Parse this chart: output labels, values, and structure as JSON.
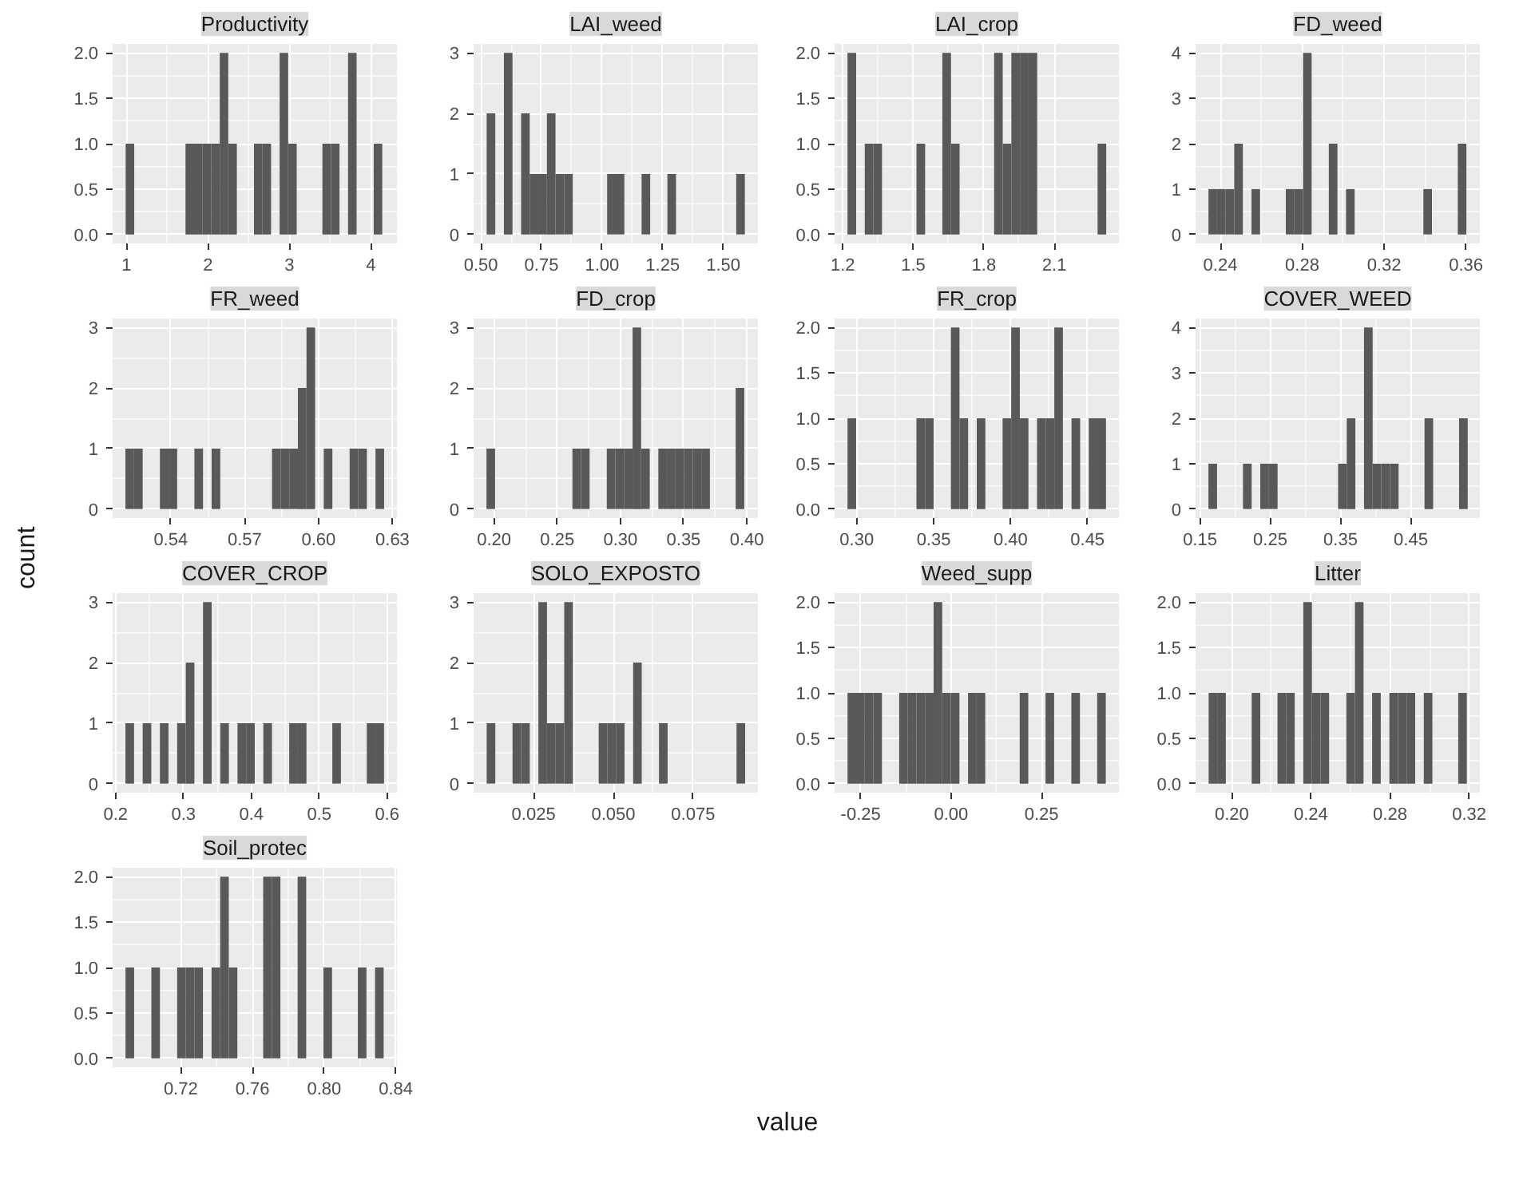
{
  "chart_data": [
    {
      "type": "other",
      "ylabel": "count",
      "xlabel": "value"
    },
    {
      "type": "histogram",
      "title": "Productivity",
      "color": "#595959",
      "grid": true,
      "xlim": [
        0.83,
        4.32
      ],
      "xticks": [
        1,
        2,
        3,
        4
      ],
      "ylim": [
        -0.1,
        2.1
      ],
      "yticks": [
        {
          "value": 0,
          "label": "0.0"
        },
        {
          "value": 0.5,
          "label": "0.5"
        },
        {
          "value": 1,
          "label": "1.0"
        },
        {
          "value": 1.5,
          "label": "1.5"
        },
        {
          "value": 2,
          "label": "2.0"
        }
      ],
      "bins": [
        0.99,
        1.095,
        1.2,
        1.305,
        1.41,
        1.515,
        1.62,
        1.725,
        1.83,
        1.935,
        2.04,
        2.145,
        2.25,
        2.355,
        2.46,
        2.565,
        2.67,
        2.775,
        2.88,
        2.985,
        3.09,
        3.195,
        3.3,
        3.405,
        3.51,
        3.615,
        3.72,
        3.825,
        3.93,
        4.035,
        4.14
      ],
      "values": [
        1,
        0,
        0,
        0,
        0,
        0,
        0,
        1,
        1,
        1,
        1,
        2,
        1,
        0,
        0,
        1,
        1,
        0,
        2,
        1,
        0,
        0,
        0,
        1,
        1,
        0,
        2,
        0,
        0,
        1
      ]
    },
    {
      "type": "histogram",
      "title": "LAI_weed",
      "color": "#595959",
      "grid": true,
      "xlim": [
        0.47,
        1.643
      ],
      "xticks": [
        {
          "value": 0.5,
          "label": "0.50"
        },
        {
          "value": 0.75,
          "label": "0.75"
        },
        {
          "value": 1,
          "label": "1.00"
        },
        {
          "value": 1.25,
          "label": "1.25"
        },
        {
          "value": 1.5,
          "label": "1.50"
        }
      ],
      "ylim": [
        -0.15,
        3.15
      ],
      "yticks": [
        0,
        1,
        2,
        3
      ],
      "bins": [
        0.524,
        0.5595,
        0.595,
        0.6305,
        0.666,
        0.7015,
        0.737,
        0.7725,
        0.808,
        0.8435,
        0.879,
        0.9145,
        0.95,
        0.9855,
        1.021,
        1.0565,
        1.092,
        1.1275,
        1.163,
        1.1985,
        1.234,
        1.2695,
        1.305,
        1.3405,
        1.376,
        1.4115,
        1.447,
        1.4825,
        1.518,
        1.5535,
        1.589
      ],
      "values": [
        2,
        0,
        3,
        0,
        2,
        1,
        1,
        2,
        1,
        1,
        0,
        0,
        0,
        0,
        1,
        1,
        0,
        0,
        1,
        0,
        0,
        1,
        0,
        0,
        0,
        0,
        0,
        0,
        0,
        1
      ]
    },
    {
      "type": "histogram",
      "title": "LAI_crop",
      "color": "#595959",
      "grid": true,
      "xlim": [
        1.165,
        2.375
      ],
      "xticks": [
        1.2,
        1.5,
        1.8,
        2.1
      ],
      "ylim": [
        -0.1,
        2.1
      ],
      "yticks": [
        {
          "value": 0,
          "label": "0.0"
        },
        {
          "value": 0.5,
          "label": "0.5"
        },
        {
          "value": 1,
          "label": "1.0"
        },
        {
          "value": 1.5,
          "label": "1.5"
        },
        {
          "value": 2,
          "label": "2.0"
        }
      ],
      "bins": [
        1.22,
        1.2567,
        1.2934,
        1.3301,
        1.3668,
        1.4035,
        1.4402,
        1.4769,
        1.5136,
        1.5503,
        1.587,
        1.6237,
        1.6604,
        1.6971,
        1.7338,
        1.7705,
        1.8072,
        1.8439,
        1.8806,
        1.9173,
        1.954,
        1.9907,
        2.0274,
        2.0641,
        2.1008,
        2.1375,
        2.1742,
        2.2109,
        2.2476,
        2.2843,
        2.321
      ],
      "values": [
        2,
        0,
        1,
        1,
        0,
        0,
        0,
        0,
        1,
        0,
        0,
        2,
        1,
        0,
        0,
        0,
        0,
        2,
        1,
        2,
        2,
        2,
        0,
        0,
        0,
        0,
        0,
        0,
        0,
        1
      ]
    },
    {
      "type": "histogram",
      "title": "FD_weed",
      "color": "#595959",
      "grid": true,
      "xlim": [
        0.2279,
        0.3668
      ],
      "xticks": [
        0.24,
        0.28,
        0.32,
        0.36
      ],
      "ylim": [
        -0.2,
        4.2
      ],
      "yticks": [
        0,
        1,
        2,
        3,
        4
      ],
      "bins": [
        0.2342,
        0.2384,
        0.2426,
        0.2468,
        0.251,
        0.2552,
        0.2594,
        0.2636,
        0.2678,
        0.272,
        0.2762,
        0.2804,
        0.2846,
        0.2888,
        0.293,
        0.2972,
        0.3014,
        0.3056,
        0.3098,
        0.314,
        0.3182,
        0.3224,
        0.3266,
        0.3308,
        0.335,
        0.3392,
        0.3434,
        0.3476,
        0.3518,
        0.356,
        0.3602
      ],
      "values": [
        1,
        1,
        1,
        2,
        0,
        1,
        0,
        0,
        0,
        1,
        1,
        4,
        0,
        0,
        2,
        0,
        1,
        0,
        0,
        0,
        0,
        0,
        0,
        0,
        0,
        1,
        0,
        0,
        0,
        2
      ]
    },
    {
      "type": "histogram",
      "title": "FR_weed",
      "color": "#595959",
      "grid": true,
      "xlim": [
        0.5164,
        0.6318
      ],
      "xticks": [
        0.54,
        0.57,
        {
          "value": 0.6,
          "label": "0.60"
        },
        0.63
      ],
      "ylim": [
        -0.15,
        3.15
      ],
      "yticks": [
        0,
        1,
        2,
        3
      ],
      "bins": [
        0.5216,
        0.5251,
        0.5286,
        0.5321,
        0.5356,
        0.5391,
        0.5426,
        0.5461,
        0.5496,
        0.5531,
        0.5566,
        0.5601,
        0.5636,
        0.5671,
        0.5706,
        0.5741,
        0.5776,
        0.5811,
        0.5846,
        0.5881,
        0.5916,
        0.5951,
        0.5986,
        0.6021,
        0.6056,
        0.6091,
        0.6126,
        0.6161,
        0.6196,
        0.6231,
        0.6266
      ],
      "values": [
        1,
        1,
        0,
        0,
        1,
        1,
        0,
        0,
        1,
        0,
        1,
        0,
        0,
        0,
        0,
        0,
        0,
        1,
        1,
        1,
        2,
        3,
        0,
        1,
        0,
        0,
        1,
        1,
        0,
        1
      ]
    },
    {
      "type": "histogram",
      "title": "FD_crop",
      "color": "#595959",
      "grid": true,
      "xlim": [
        0.1838,
        0.4088
      ],
      "xticks": [
        {
          "value": 0.2,
          "label": "0.20"
        },
        0.25,
        {
          "value": 0.3,
          "label": "0.30"
        },
        0.35,
        {
          "value": 0.4,
          "label": "0.40"
        }
      ],
      "ylim": [
        -0.15,
        3.15
      ],
      "yticks": [
        0,
        1,
        2,
        3
      ],
      "bins": [
        0.194,
        0.2008,
        0.2076,
        0.2144,
        0.2212,
        0.228,
        0.2348,
        0.2416,
        0.2484,
        0.2552,
        0.262,
        0.2688,
        0.2756,
        0.2824,
        0.2892,
        0.296,
        0.3028,
        0.3096,
        0.3164,
        0.3232,
        0.33,
        0.3368,
        0.3436,
        0.3504,
        0.3572,
        0.364,
        0.3708,
        0.3776,
        0.3844,
        0.3912,
        0.398
      ],
      "values": [
        1,
        0,
        0,
        0,
        0,
        0,
        0,
        0,
        0,
        0,
        1,
        1,
        0,
        0,
        1,
        1,
        1,
        3,
        1,
        0,
        1,
        1,
        1,
        1,
        1,
        1,
        0,
        0,
        0,
        2
      ]
    },
    {
      "type": "histogram",
      "title": "FR_crop",
      "color": "#595959",
      "grid": true,
      "xlim": [
        0.2856,
        0.4704
      ],
      "xticks": [
        {
          "value": 0.3,
          "label": "0.30"
        },
        0.35,
        {
          "value": 0.4,
          "label": "0.40"
        },
        0.45
      ],
      "ylim": [
        -0.1,
        2.1
      ],
      "yticks": [
        {
          "value": 0,
          "label": "0.0"
        },
        {
          "value": 0.5,
          "label": "0.5"
        },
        {
          "value": 1,
          "label": "1.0"
        },
        {
          "value": 1.5,
          "label": "1.5"
        },
        {
          "value": 2,
          "label": "2.0"
        }
      ],
      "bins": [
        0.294,
        0.2996,
        0.3052,
        0.3108,
        0.3164,
        0.322,
        0.3276,
        0.3332,
        0.3388,
        0.3444,
        0.35,
        0.3556,
        0.3612,
        0.3668,
        0.3724,
        0.378,
        0.3836,
        0.3892,
        0.3948,
        0.4004,
        0.406,
        0.4116,
        0.4172,
        0.4228,
        0.4284,
        0.434,
        0.4396,
        0.4452,
        0.4508,
        0.4564,
        0.462
      ],
      "values": [
        1,
        0,
        0,
        0,
        0,
        0,
        0,
        0,
        1,
        1,
        0,
        0,
        2,
        1,
        0,
        1,
        0,
        0,
        1,
        2,
        1,
        0,
        1,
        1,
        2,
        0,
        1,
        0,
        1,
        1
      ]
    },
    {
      "type": "histogram",
      "title": "COVER_WEED",
      "color": "#595959",
      "grid": true,
      "xlim": [
        0.1437,
        0.5483
      ],
      "xticks": [
        0.15,
        0.25,
        0.35,
        0.45
      ],
      "ylim": [
        -0.2,
        4.2
      ],
      "yticks": [
        0,
        1,
        2,
        3,
        4
      ],
      "bins": [
        0.162,
        0.1743,
        0.1866,
        0.1989,
        0.2112,
        0.2235,
        0.2358,
        0.2481,
        0.2604,
        0.2727,
        0.285,
        0.2973,
        0.3096,
        0.3219,
        0.3342,
        0.3465,
        0.3588,
        0.3711,
        0.3834,
        0.3957,
        0.408,
        0.4203,
        0.4326,
        0.4449,
        0.4572,
        0.4695,
        0.4818,
        0.4941,
        0.5064,
        0.5187,
        0.531
      ],
      "values": [
        1,
        0,
        0,
        0,
        1,
        0,
        1,
        1,
        0,
        0,
        0,
        0,
        0,
        0,
        0,
        1,
        2,
        0,
        4,
        1,
        1,
        1,
        0,
        0,
        0,
        2,
        0,
        0,
        0,
        2
      ]
    },
    {
      "type": "histogram",
      "title": "COVER_CROP",
      "color": "#595959",
      "grid": true,
      "xlim": [
        0.1956,
        0.6145
      ],
      "xticks": [
        0.2,
        0.3,
        0.4,
        0.5,
        0.6
      ],
      "ylim": [
        -0.15,
        3.15
      ],
      "yticks": [
        0,
        1,
        2,
        3
      ],
      "bins": [
        0.2145,
        0.2272,
        0.2399,
        0.2526,
        0.2653,
        0.278,
        0.2907,
        0.3034,
        0.3161,
        0.3288,
        0.3415,
        0.3542,
        0.3669,
        0.3796,
        0.3923,
        0.405,
        0.4177,
        0.4304,
        0.4431,
        0.4558,
        0.4685,
        0.4812,
        0.4939,
        0.5066,
        0.5193,
        0.532,
        0.5447,
        0.5574,
        0.5701,
        0.5828,
        0.5955
      ],
      "values": [
        1,
        0,
        1,
        0,
        1,
        0,
        1,
        2,
        0,
        3,
        0,
        1,
        0,
        1,
        1,
        0,
        1,
        0,
        0,
        1,
        1,
        0,
        0,
        0,
        1,
        0,
        0,
        0,
        1,
        1
      ]
    },
    {
      "type": "histogram",
      "title": "SOLO_EXPOSTO",
      "color": "#595959",
      "grid": true,
      "xlim": [
        0.0062,
        0.0953
      ],
      "xticks": [
        0.025,
        {
          "value": 0.05,
          "label": "0.050"
        },
        0.075
      ],
      "ylim": [
        -0.15,
        3.15
      ],
      "yticks": [
        0,
        1,
        2,
        3
      ],
      "bins": [
        0.0103,
        0.013,
        0.0157,
        0.0184,
        0.0211,
        0.0238,
        0.0265,
        0.0292,
        0.0319,
        0.0346,
        0.0373,
        0.04,
        0.0427,
        0.0454,
        0.0481,
        0.0508,
        0.0535,
        0.0562,
        0.0589,
        0.0616,
        0.0643,
        0.067,
        0.0697,
        0.0724,
        0.0751,
        0.0778,
        0.0805,
        0.0832,
        0.0859,
        0.0886,
        0.0913
      ],
      "values": [
        1,
        0,
        0,
        1,
        1,
        0,
        3,
        1,
        1,
        3,
        0,
        0,
        0,
        1,
        1,
        1,
        0,
        2,
        0,
        0,
        1,
        0,
        0,
        0,
        0,
        0,
        0,
        0,
        0,
        1
      ]
    },
    {
      "type": "histogram",
      "title": "Weed_supp",
      "color": "#595959",
      "grid": true,
      "xlim": [
        -0.3222,
        0.4639
      ],
      "xticks": [
        -0.25,
        {
          "value": 0,
          "label": "0.00"
        },
        0.25
      ],
      "ylim": [
        -0.1,
        2.1
      ],
      "yticks": [
        {
          "value": 0,
          "label": "0.0"
        },
        {
          "value": 0.5,
          "label": "0.5"
        },
        {
          "value": 1,
          "label": "1.0"
        },
        {
          "value": 1.5,
          "label": "1.5"
        },
        {
          "value": 2,
          "label": "2.0"
        }
      ],
      "bins": [
        -0.2864,
        -0.2626,
        -0.2388,
        -0.215,
        -0.1912,
        -0.1674,
        -0.1436,
        -0.1198,
        -0.096,
        -0.0722,
        -0.0484,
        -0.0246,
        -0.0008,
        0.023,
        0.0468,
        0.0706,
        0.0944,
        0.1182,
        0.142,
        0.1658,
        0.1896,
        0.2134,
        0.2372,
        0.261,
        0.2848,
        0.3086,
        0.3324,
        0.3562,
        0.38,
        0.4038,
        0.4276
      ],
      "values": [
        1,
        1,
        1,
        1,
        0,
        0,
        1,
        1,
        1,
        1,
        2,
        1,
        1,
        0,
        1,
        1,
        0,
        0,
        0,
        0,
        1,
        0,
        0,
        1,
        0,
        0,
        1,
        0,
        0,
        1
      ]
    },
    {
      "type": "histogram",
      "title": "Litter",
      "color": "#595959",
      "grid": true,
      "xlim": [
        0.1817,
        0.3254
      ],
      "xticks": [
        {
          "value": 0.2,
          "label": "0.20"
        },
        0.24,
        0.28,
        0.32
      ],
      "ylim": [
        -0.1,
        2.1
      ],
      "yticks": [
        {
          "value": 0,
          "label": "0.0"
        },
        {
          "value": 0.5,
          "label": "0.5"
        },
        {
          "value": 1,
          "label": "1.0"
        },
        {
          "value": 1.5,
          "label": "1.5"
        },
        {
          "value": 2,
          "label": "2.0"
        }
      ],
      "bins": [
        0.1883,
        0.19265,
        0.197,
        0.20135,
        0.2057,
        0.21005,
        0.2144,
        0.21875,
        0.2231,
        0.22745,
        0.2318,
        0.23615,
        0.2405,
        0.24485,
        0.2492,
        0.25355,
        0.2579,
        0.26225,
        0.2666,
        0.27095,
        0.2753,
        0.27965,
        0.284,
        0.28835,
        0.2927,
        0.29705,
        0.3014,
        0.30575,
        0.3101,
        0.31445,
        0.3188
      ],
      "values": [
        1,
        1,
        0,
        0,
        0,
        1,
        0,
        0,
        1,
        1,
        0,
        2,
        1,
        1,
        0,
        0,
        1,
        2,
        0,
        1,
        0,
        1,
        1,
        1,
        0,
        1,
        0,
        0,
        0,
        1
      ]
    },
    {
      "type": "histogram",
      "title": "Soil_protec",
      "color": "#595959",
      "grid": true,
      "xlim": [
        0.682,
        0.8406
      ],
      "xticks": [
        0.72,
        0.76,
        {
          "value": 0.8,
          "label": "0.80"
        },
        0.84
      ],
      "ylim": [
        -0.1,
        2.1
      ],
      "yticks": [
        {
          "value": 0,
          "label": "0.0"
        },
        {
          "value": 0.5,
          "label": "0.5"
        },
        {
          "value": 1,
          "label": "1.0"
        },
        {
          "value": 1.5,
          "label": "1.5"
        },
        {
          "value": 2,
          "label": "2.0"
        }
      ],
      "bins": [
        0.6892,
        0.694,
        0.6988,
        0.7036,
        0.7084,
        0.7132,
        0.718,
        0.7228,
        0.7276,
        0.7324,
        0.7372,
        0.742,
        0.7468,
        0.7516,
        0.7564,
        0.7612,
        0.766,
        0.7708,
        0.7756,
        0.7804,
        0.7852,
        0.79,
        0.7948,
        0.7996,
        0.8044,
        0.8092,
        0.814,
        0.8188,
        0.8236,
        0.8284,
        0.8332
      ],
      "values": [
        1,
        0,
        0,
        1,
        0,
        0,
        1,
        1,
        1,
        0,
        1,
        2,
        1,
        0,
        0,
        0,
        2,
        2,
        0,
        0,
        2,
        0,
        0,
        1,
        0,
        0,
        0,
        1,
        0,
        1
      ]
    }
  ]
}
